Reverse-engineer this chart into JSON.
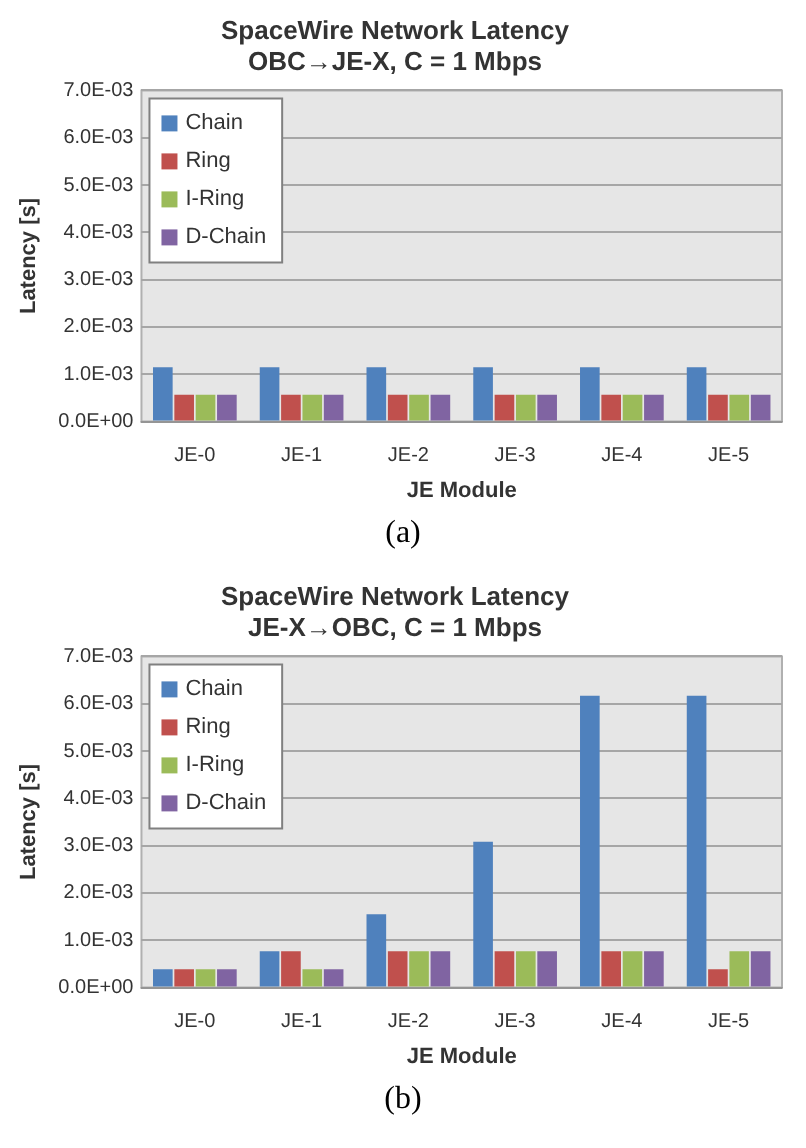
{
  "chart_data": [
    {
      "type": "bar",
      "title": "SpaceWire Network Latency",
      "subtitle": "OBC→JE-X, C = 1 Mbps",
      "xlabel": "JE Module",
      "ylabel": "Latency [s]",
      "categories": [
        "JE-0",
        "JE-1",
        "JE-2",
        "JE-3",
        "JE-4",
        "JE-5"
      ],
      "series": [
        {
          "name": "Chain",
          "color": "#4f81bd",
          "values": [
            0.00115,
            0.00115,
            0.00115,
            0.00115,
            0.00115,
            0.00115
          ]
        },
        {
          "name": "Ring",
          "color": "#c0504d",
          "values": [
            0.00057,
            0.00057,
            0.00057,
            0.00057,
            0.00057,
            0.00057
          ]
        },
        {
          "name": "I-Ring",
          "color": "#9bbb59",
          "values": [
            0.00057,
            0.00057,
            0.00057,
            0.00057,
            0.00057,
            0.00057
          ]
        },
        {
          "name": "D-Chain",
          "color": "#8064a2",
          "values": [
            0.00057,
            0.00057,
            0.00057,
            0.00057,
            0.00057,
            0.00057
          ]
        }
      ],
      "ylim": [
        0,
        0.007
      ],
      "yticks": [
        {
          "value": 0,
          "label": "0.0E+00"
        },
        {
          "value": 0.001,
          "label": "1.0E-03"
        },
        {
          "value": 0.002,
          "label": "2.0E-03"
        },
        {
          "value": 0.003,
          "label": "3.0E-03"
        },
        {
          "value": 0.004,
          "label": "4.0E-03"
        },
        {
          "value": 0.005,
          "label": "5.0E-03"
        },
        {
          "value": 0.006,
          "label": "6.0E-03"
        },
        {
          "value": 0.007,
          "label": "7.0E-03"
        }
      ],
      "grid": "y",
      "legend": "top left",
      "annotations": [
        "(a)"
      ]
    },
    {
      "type": "bar",
      "title": "SpaceWire Network Latency",
      "subtitle": "JE-X→OBC, C = 1 Mbps",
      "xlabel": "JE Module",
      "ylabel": "Latency [s]",
      "categories": [
        "JE-0",
        "JE-1",
        "JE-2",
        "JE-3",
        "JE-4",
        "JE-5"
      ],
      "series": [
        {
          "name": "Chain",
          "color": "#4f81bd",
          "values": [
            0.00039,
            0.00077,
            0.00155,
            0.00308,
            0.00617,
            0.00617
          ]
        },
        {
          "name": "Ring",
          "color": "#c0504d",
          "values": [
            0.00039,
            0.00077,
            0.00077,
            0.00077,
            0.00077,
            0.00039
          ]
        },
        {
          "name": "I-Ring",
          "color": "#9bbb59",
          "values": [
            0.00039,
            0.00039,
            0.00077,
            0.00077,
            0.00077,
            0.00077
          ]
        },
        {
          "name": "D-Chain",
          "color": "#8064a2",
          "values": [
            0.00039,
            0.00039,
            0.00077,
            0.00077,
            0.00077,
            0.00077
          ]
        }
      ],
      "ylim": [
        0,
        0.007
      ],
      "yticks": [
        {
          "value": 0,
          "label": "0.0E+00"
        },
        {
          "value": 0.001,
          "label": "1.0E-03"
        },
        {
          "value": 0.002,
          "label": "2.0E-03"
        },
        {
          "value": 0.003,
          "label": "3.0E-03"
        },
        {
          "value": 0.004,
          "label": "4.0E-03"
        },
        {
          "value": 0.005,
          "label": "5.0E-03"
        },
        {
          "value": 0.006,
          "label": "6.0E-03"
        },
        {
          "value": 0.007,
          "label": "7.0E-03"
        }
      ],
      "grid": "y",
      "legend": "top left",
      "annotations": [
        "(b)"
      ]
    }
  ]
}
